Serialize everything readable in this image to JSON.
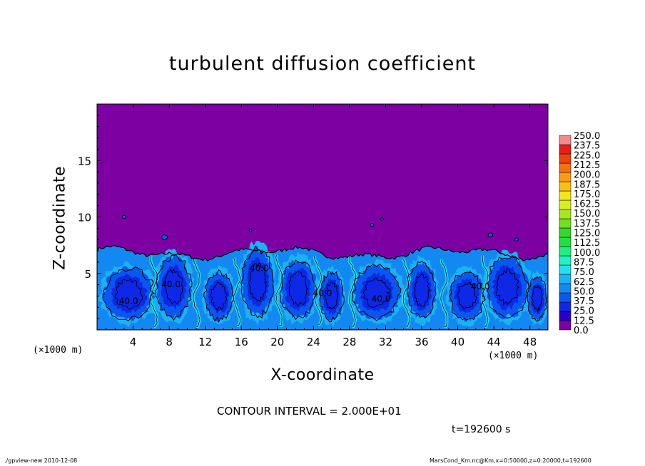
{
  "colors": {
    "background_level": "#7d00a3",
    "frame": "#000000"
  },
  "chart_data": {
    "type": "heatmap",
    "title": "turbulent diffusion coefficient",
    "xlabel": "X-coordinate",
    "ylabel": "Z-coordinate",
    "x_unit_left": "(×1000 m)",
    "x_unit_right": "(×1000 m)",
    "xlim": [
      0,
      50
    ],
    "ylim": [
      0,
      20
    ],
    "x_ticks": [
      4,
      8,
      12,
      16,
      20,
      24,
      28,
      32,
      36,
      40,
      44,
      48
    ],
    "y_ticks": [
      5,
      10,
      15
    ],
    "grid": false,
    "colorbar": {
      "levels": [
        0.0,
        12.5,
        25.0,
        37.5,
        50.0,
        62.5,
        75.0,
        87.5,
        100.0,
        112.5,
        125.0,
        137.5,
        150.0,
        162.5,
        175.0,
        187.5,
        200.0,
        212.5,
        225.0,
        237.5,
        250.0
      ],
      "labels": [
        "0.0",
        "12.5",
        "25.0",
        "37.5",
        "50.0",
        "62.5",
        "75.0",
        "87.5",
        "100.0",
        "112.5",
        "125.0",
        "137.5",
        "150.0",
        "162.5",
        "175.0",
        "187.5",
        "200.0",
        "212.5",
        "225.0",
        "237.5",
        "250.0"
      ],
      "colors": [
        "#7d00a3",
        "#2a00c8",
        "#0d28e6",
        "#0a57f0",
        "#1488f2",
        "#1bb2f2",
        "#22e0f0",
        "#20f2c0",
        "#1ef080",
        "#22e040",
        "#33d926",
        "#70e020",
        "#a8e820",
        "#d8ee20",
        "#f5e61a",
        "#f8c015",
        "#f89a12",
        "#f5700f",
        "#ee420e",
        "#e81c18",
        "#f28a8a"
      ]
    },
    "contour_labels": [
      {
        "text": "40.0",
        "x": 3.5,
        "z": 2.3
      },
      {
        "text": "40.0",
        "x": 8.2,
        "z": 3.8
      },
      {
        "text": "40.0",
        "x": 18.0,
        "z": 5.2
      },
      {
        "text": "40.0",
        "x": 25.0,
        "z": 3.0
      },
      {
        "text": "40.0",
        "x": 31.5,
        "z": 2.5
      },
      {
        "text": "40.0",
        "x": 42.5,
        "z": 3.6
      }
    ],
    "contour_interval": "CONTOUR INTERVAL = 2.000E+01",
    "time_label": "t=192600 s"
  },
  "footer": {
    "left": "./gpview-new  2010-12-08",
    "right": "MarsCond_Km.nc@Km,x=0:50000,z=0:20000,t=192600"
  }
}
